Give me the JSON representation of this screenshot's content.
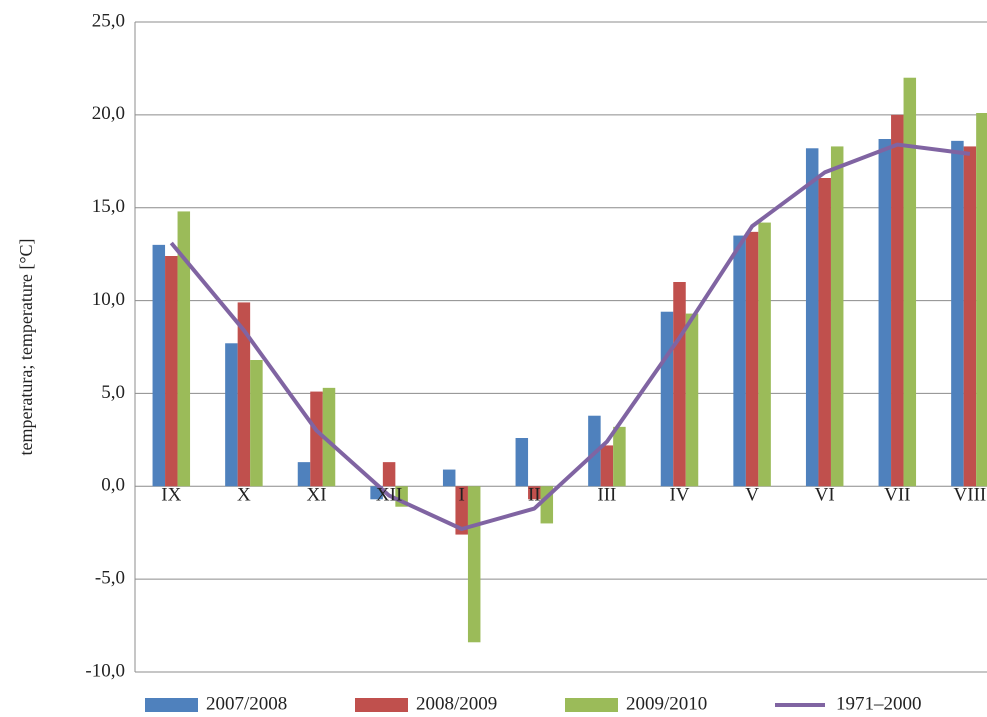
{
  "chart_data": {
    "type": "bar-line",
    "ylabel": "temperatura; temperature [°C]",
    "categories": [
      "IX",
      "X",
      "XI",
      "XII",
      "I",
      "II",
      "III",
      "IV",
      "V",
      "VI",
      "VII",
      "VIII"
    ],
    "series": [
      {
        "name": "2007/2008",
        "type": "bar",
        "color": "#4f81bd",
        "values": [
          13.0,
          7.7,
          1.3,
          -0.7,
          0.9,
          2.6,
          3.8,
          9.4,
          13.5,
          18.2,
          18.7,
          18.6
        ]
      },
      {
        "name": "2008/2009",
        "type": "bar",
        "color": "#c0504d",
        "values": [
          12.4,
          9.9,
          5.1,
          1.3,
          -2.6,
          -0.7,
          2.2,
          11.0,
          13.7,
          16.6,
          20.0,
          18.3
        ]
      },
      {
        "name": "2009/2010",
        "type": "bar",
        "color": "#9bbb59",
        "values": [
          14.8,
          6.8,
          5.3,
          -1.1,
          -8.4,
          -2.0,
          3.2,
          9.3,
          14.2,
          18.3,
          22.0,
          20.1
        ]
      },
      {
        "name": "1971–2000",
        "type": "line",
        "color": "#8064a2",
        "values": [
          13.1,
          8.4,
          3.0,
          -0.5,
          -2.3,
          -1.2,
          2.4,
          8.0,
          14.0,
          16.9,
          18.4,
          17.9
        ]
      }
    ],
    "ylim": [
      -10,
      25
    ],
    "yticks": [
      {
        "value": -10,
        "label": "-10,0"
      },
      {
        "value": -5,
        "label": "-5,0"
      },
      {
        "value": 0,
        "label": "0,0"
      },
      {
        "value": 5,
        "label": "5,0"
      },
      {
        "value": 10,
        "label": "10,0"
      },
      {
        "value": 15,
        "label": "15,0"
      },
      {
        "value": 20,
        "label": "20,0"
      },
      {
        "value": 25,
        "label": "25,0"
      }
    ],
    "grid": true,
    "legend": "bottom"
  }
}
